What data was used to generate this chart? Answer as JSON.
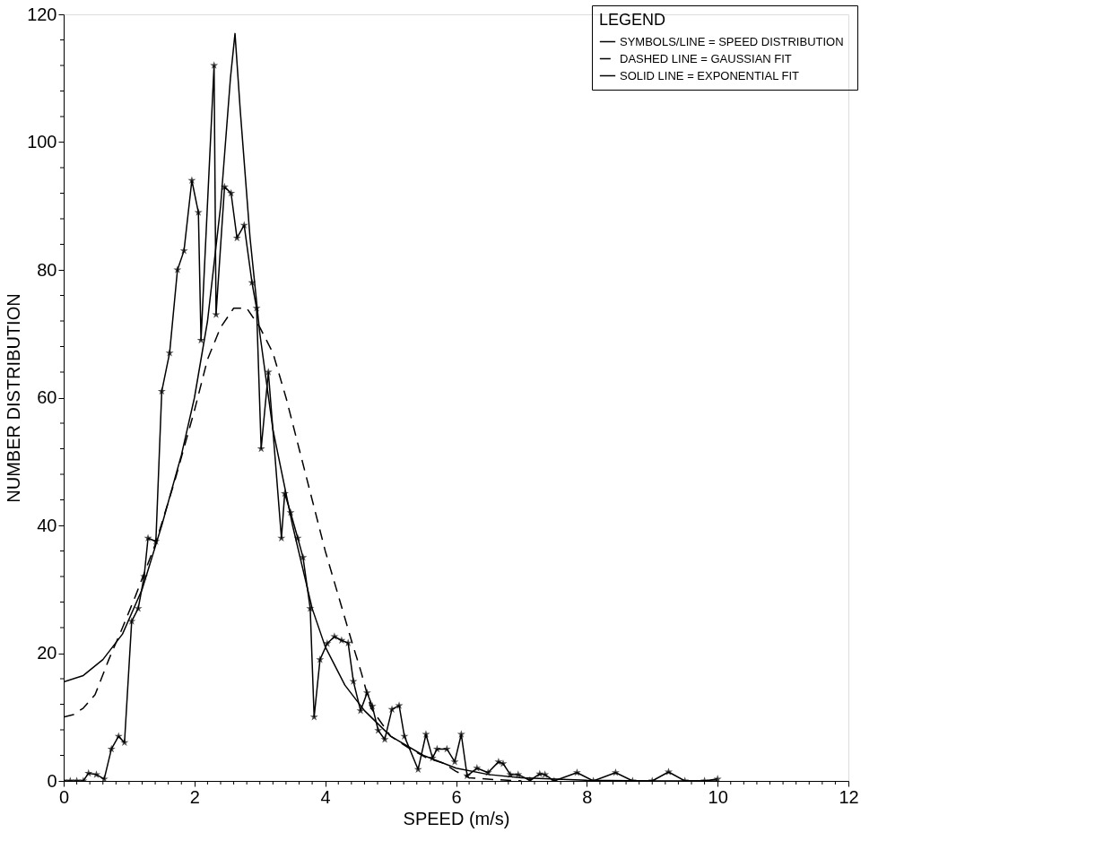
{
  "chart_data": {
    "type": "line",
    "xlabel": "SPEED (m/s)",
    "ylabel": "NUMBER DISTRIBUTION",
    "legend_title": "LEGEND",
    "xlim": [
      0,
      12
    ],
    "ylim": [
      0,
      120
    ],
    "xticks": [
      0,
      {
        "value": 0.2,
        "label": null
      },
      {
        "value": 0.4,
        "label": null
      },
      {
        "value": 0.6,
        "label": null
      },
      {
        "value": 0.8,
        "label": null
      },
      {
        "value": 1,
        "label": null
      },
      {
        "value": 1.2,
        "label": null
      },
      {
        "value": 1.4,
        "label": null
      },
      {
        "value": 1.6,
        "label": null
      },
      {
        "value": 1.8,
        "label": null
      },
      2,
      {
        "value": 2.2,
        "label": null
      },
      {
        "value": 2.4,
        "label": null
      },
      {
        "value": 2.6,
        "label": null
      },
      {
        "value": 2.8,
        "label": null
      },
      {
        "value": 3,
        "label": null
      },
      {
        "value": 3.2,
        "label": null
      },
      {
        "value": 3.4,
        "label": null
      },
      {
        "value": 3.6,
        "label": null
      },
      {
        "value": 3.8,
        "label": null
      },
      4,
      {
        "value": 4.2,
        "label": null
      },
      {
        "value": 4.4,
        "label": null
      },
      {
        "value": 4.6,
        "label": null
      },
      {
        "value": 4.8,
        "label": null
      },
      {
        "value": 5,
        "label": null
      },
      {
        "value": 5.2,
        "label": null
      },
      {
        "value": 5.4,
        "label": null
      },
      {
        "value": 5.6,
        "label": null
      },
      {
        "value": 5.8,
        "label": null
      },
      6,
      {
        "value": 6.2,
        "label": null
      },
      {
        "value": 6.4,
        "label": null
      },
      {
        "value": 6.6,
        "label": null
      },
      {
        "value": 6.8,
        "label": null
      },
      {
        "value": 7,
        "label": null
      },
      {
        "value": 7.2,
        "label": null
      },
      {
        "value": 7.4,
        "label": null
      },
      {
        "value": 7.6,
        "label": null
      },
      {
        "value": 7.8,
        "label": null
      },
      8,
      {
        "value": 8.2,
        "label": null
      },
      {
        "value": 8.4,
        "label": null
      },
      {
        "value": 8.6,
        "label": null
      },
      {
        "value": 8.8,
        "label": null
      },
      {
        "value": 9,
        "label": null
      },
      {
        "value": 9.2,
        "label": null
      },
      {
        "value": 9.4,
        "label": null
      },
      {
        "value": 9.6,
        "label": null
      },
      {
        "value": 9.8,
        "label": null
      },
      10,
      {
        "value": 10.2,
        "label": null
      },
      {
        "value": 10.4,
        "label": null
      },
      {
        "value": 10.6,
        "label": null
      },
      {
        "value": 10.8,
        "label": null
      },
      {
        "value": 11,
        "label": null
      },
      {
        "value": 11.2,
        "label": null
      },
      {
        "value": 11.4,
        "label": null
      },
      {
        "value": 11.6,
        "label": null
      },
      {
        "value": 11.8,
        "label": null
      },
      12
    ],
    "yticks": [
      0,
      {
        "value": 4,
        "label": null
      },
      {
        "value": 8,
        "label": null
      },
      {
        "value": 12,
        "label": null
      },
      {
        "value": 16,
        "label": null
      },
      20,
      {
        "value": 24,
        "label": null
      },
      {
        "value": 28,
        "label": null
      },
      {
        "value": 32,
        "label": null
      },
      {
        "value": 36,
        "label": null
      },
      40,
      {
        "value": 44,
        "label": null
      },
      {
        "value": 48,
        "label": null
      },
      {
        "value": 52,
        "label": null
      },
      {
        "value": 56,
        "label": null
      },
      60,
      {
        "value": 64,
        "label": null
      },
      {
        "value": 68,
        "label": null
      },
      {
        "value": 72,
        "label": null
      },
      {
        "value": 76,
        "label": null
      },
      80,
      {
        "value": 84,
        "label": null
      },
      {
        "value": 88,
        "label": null
      },
      {
        "value": 92,
        "label": null
      },
      {
        "value": 96,
        "label": null
      },
      100,
      {
        "value": 104,
        "label": null
      },
      {
        "value": 108,
        "label": null
      },
      {
        "value": 112,
        "label": null
      },
      {
        "value": 116,
        "label": null
      },
      120
    ],
    "grid": false,
    "legend": "top right",
    "series": [
      {
        "name": "SYMBOLS/LINE  =  SPEED DISTRIBUTION",
        "color": "#000000",
        "marker": "star",
        "line_style": "solid",
        "x": [
          0,
          0.1,
          0.2,
          0.3,
          0.38,
          0.5,
          0.62,
          0.73,
          0.84,
          0.93,
          1.04,
          1.14,
          1.23,
          1.29,
          1.41,
          1.5,
          1.62,
          1.74,
          1.84,
          1.96,
          2.06,
          2.1,
          2.3,
          2.33,
          2.46,
          2.56,
          2.65,
          2.76,
          2.88,
          2.95,
          3.02,
          3.13,
          3.33,
          3.38,
          3.47,
          3.58,
          3.66,
          3.77,
          3.83,
          3.92,
          4.03,
          4.14,
          4.25,
          4.35,
          4.43,
          4.54,
          4.64,
          4.72,
          4.81,
          4.91,
          5.02,
          5.13,
          5.21,
          5.42,
          5.54,
          5.64,
          5.71,
          5.86,
          5.98,
          6.08,
          6.17,
          6.32,
          6.49,
          6.65,
          6.72,
          6.83,
          6.95,
          7.13,
          7.28,
          7.36,
          7.5,
          7.85,
          8.1,
          8.44,
          8.7,
          9.0,
          9.25,
          9.5,
          9.8,
          10.0
        ],
        "values": [
          0,
          0,
          0,
          0,
          1.2,
          1,
          0.3,
          5,
          7,
          6,
          25,
          27,
          32,
          38,
          37.5,
          61,
          67,
          80,
          83,
          94,
          89,
          69,
          112,
          73,
          93,
          92,
          85,
          87,
          78,
          74,
          52,
          64,
          38,
          45,
          42,
          38,
          35,
          27,
          10,
          19,
          21.5,
          22.6,
          22,
          21.6,
          15.6,
          11,
          13.8,
          11.7,
          7.9,
          6.5,
          11.2,
          11.8,
          7,
          1.8,
          7.3,
          3.6,
          5,
          5,
          3,
          7.3,
          0.8,
          2,
          1.3,
          3,
          2.7,
          1,
          1,
          0.1,
          1.1,
          1,
          0,
          1.3,
          0,
          1.3,
          0,
          0,
          1.4,
          0,
          0,
          0.3
        ]
      },
      {
        "name": "DASHED LINE  =  GAUSSIAN FIT",
        "color": "#000000",
        "marker": "none",
        "line_style": "dashed",
        "x": [
          0,
          0.15,
          0.3,
          0.48,
          0.69,
          0.9,
          1.1,
          1.4,
          1.7,
          2.0,
          2.2,
          2.4,
          2.6,
          2.8,
          3.0,
          3.2,
          3.4,
          3.6,
          3.8,
          4.0,
          4.2,
          4.4,
          4.55,
          4.7,
          5.0,
          5.3,
          5.55,
          5.8,
          6.0,
          6.2,
          6.6,
          7.0
        ],
        "values": [
          10,
          10.4,
          11.4,
          13.5,
          19,
          24,
          29,
          37,
          47,
          58,
          66,
          71,
          74,
          74,
          71,
          67,
          60,
          52,
          44,
          36,
          29,
          22,
          17,
          11.4,
          7,
          5,
          3.6,
          2.8,
          1.5,
          0.5,
          0.2,
          0
        ]
      },
      {
        "name": "SOLID LINE  =  EXPONENTIAL FIT",
        "color": "#000000",
        "marker": "none",
        "line_style": "solid",
        "x": [
          0,
          0.3,
          0.6,
          0.9,
          1.2,
          1.5,
          1.8,
          2.0,
          2.2,
          2.4,
          2.55,
          2.62,
          2.7,
          2.85,
          3.0,
          3.2,
          3.5,
          3.8,
          4.0,
          4.3,
          4.6,
          5.0,
          5.5,
          6.0,
          6.5,
          7.0,
          8.0,
          9.0,
          10.0
        ],
        "values": [
          15.5,
          16.5,
          19,
          23,
          30,
          40,
          51,
          60,
          72,
          90,
          110,
          117,
          105,
          85,
          70,
          55,
          40,
          27,
          21,
          15,
          11,
          7,
          4,
          2,
          1,
          0.5,
          0.1,
          0,
          0
        ]
      }
    ]
  }
}
